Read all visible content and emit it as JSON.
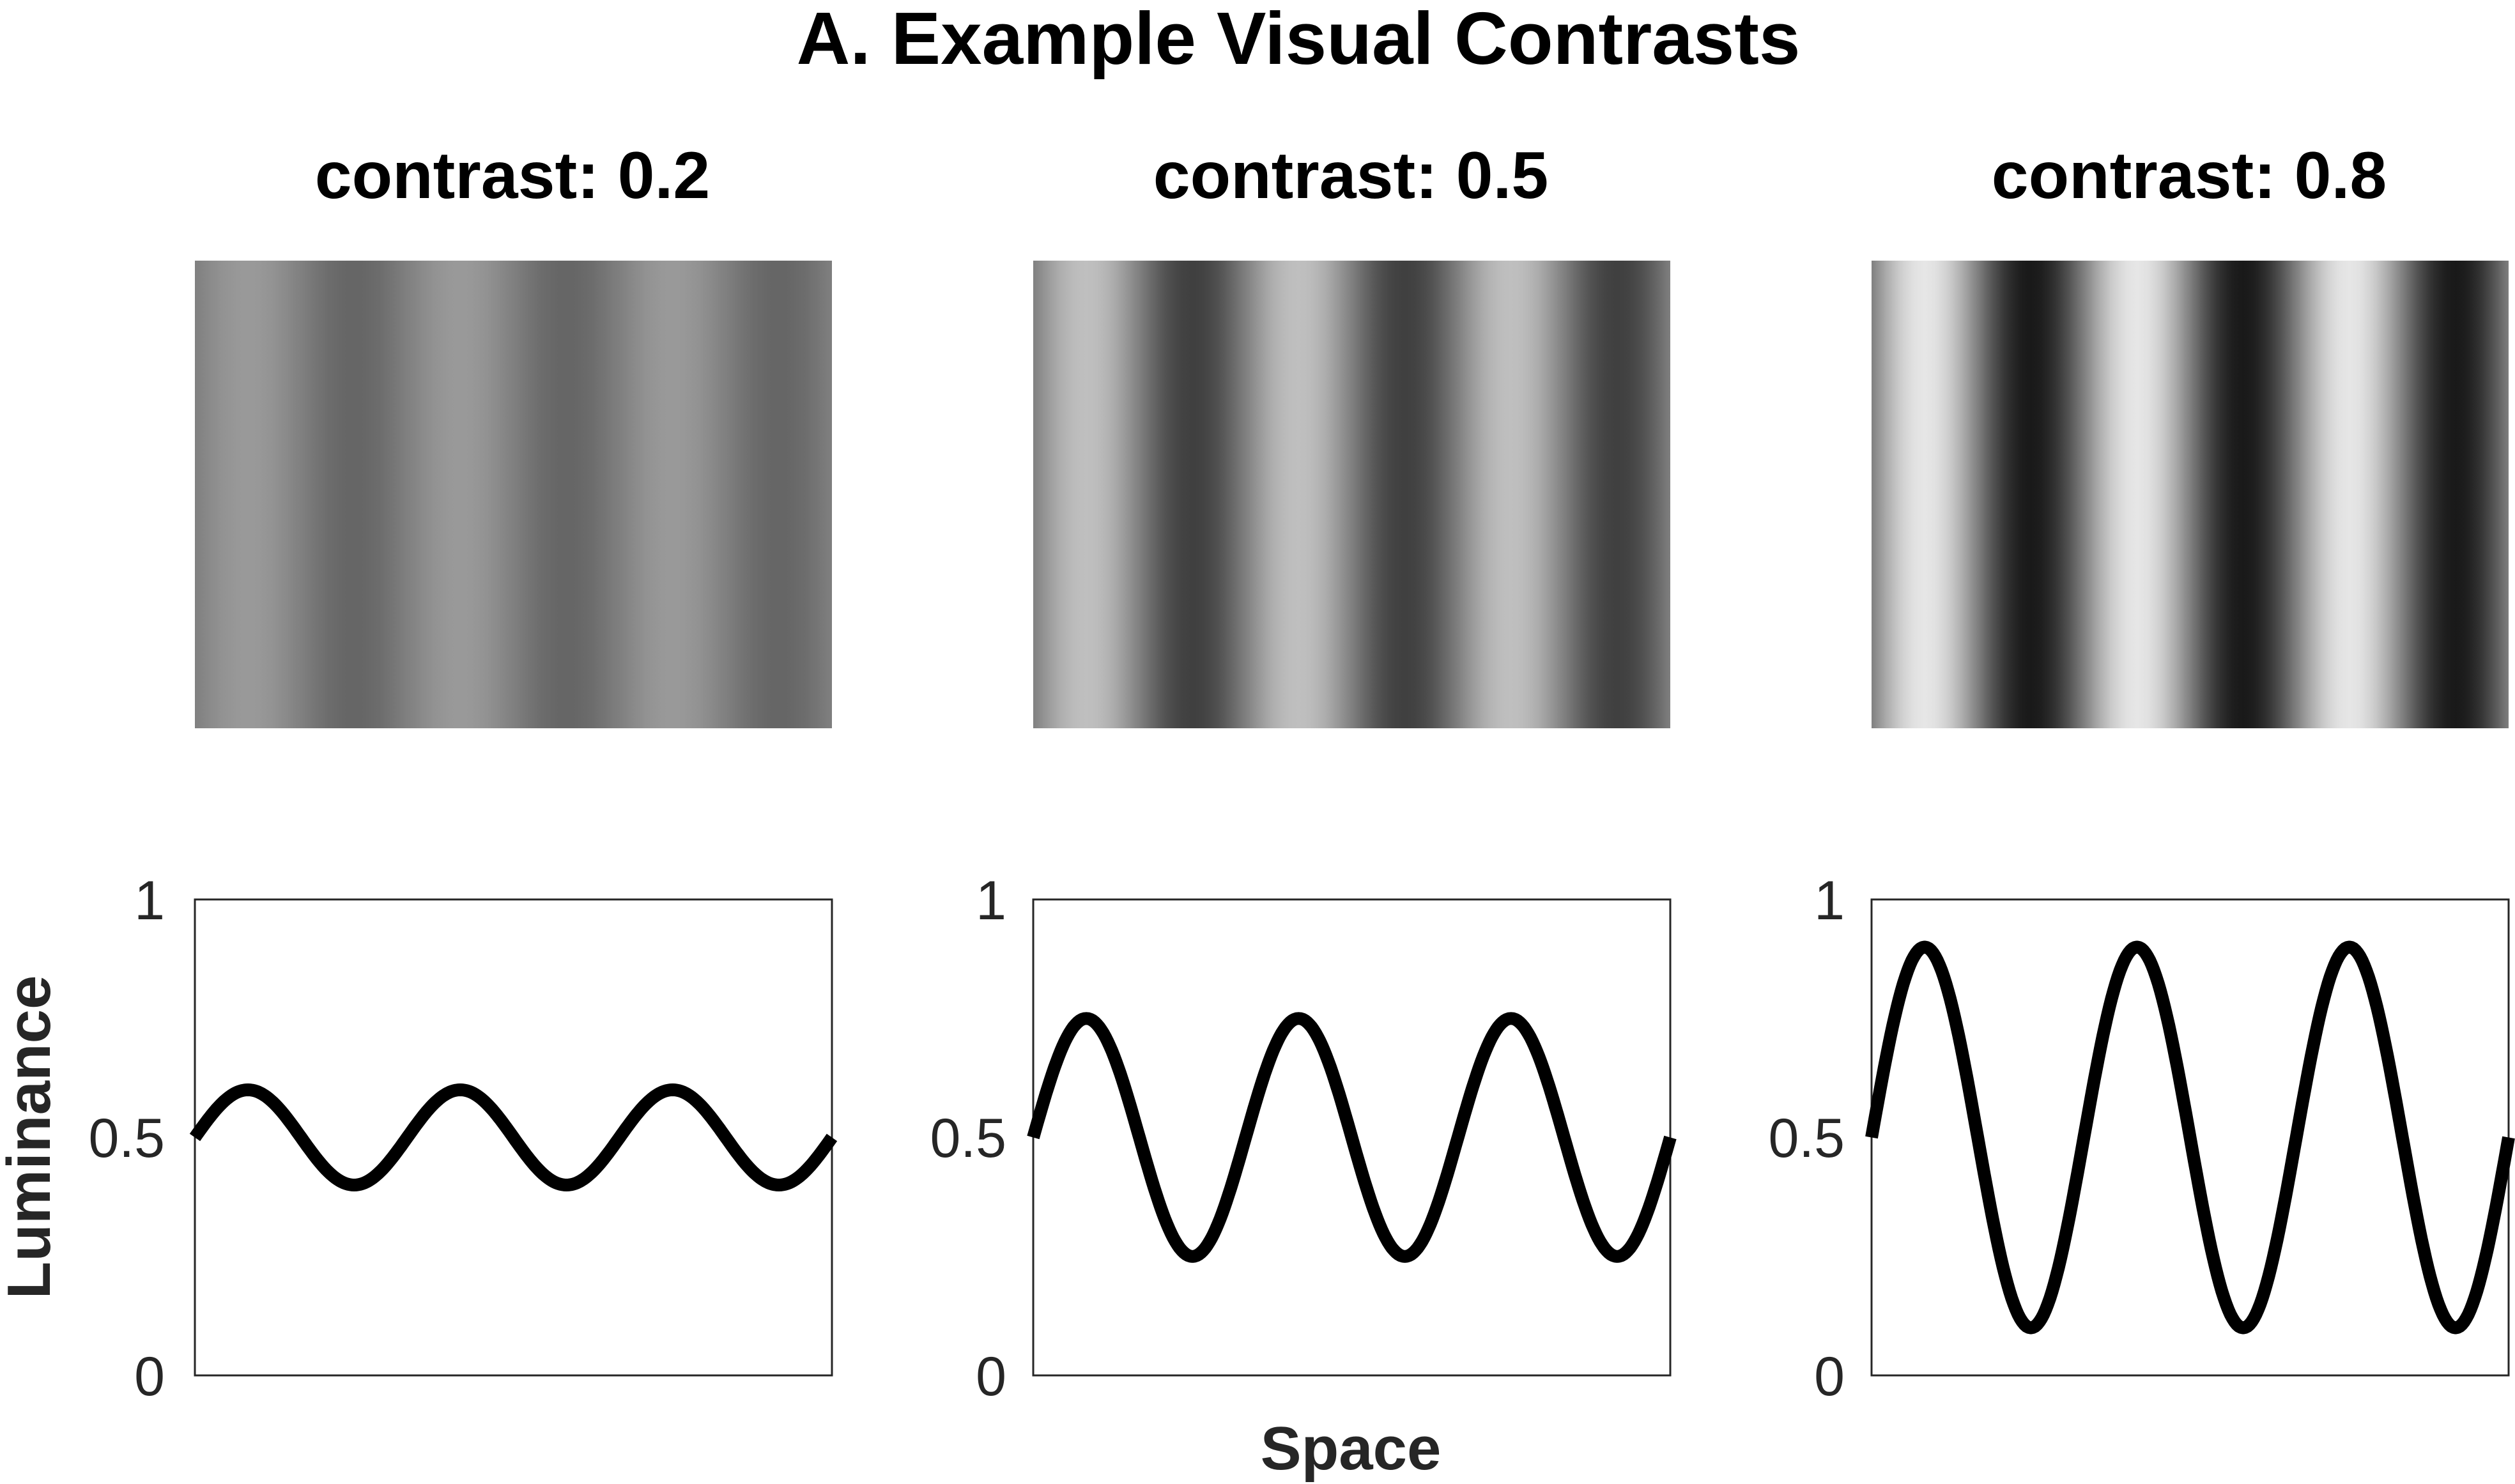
{
  "figure_title": "A. Example Visual Contrasts",
  "colors": {
    "wave": "#000000",
    "axis": "#262626",
    "text": "#000000"
  },
  "chart_data": [
    {
      "type": "line",
      "title": "contrast: 0.2",
      "contrast": 0.2,
      "mean_luminance": 0.5,
      "cycles": 3,
      "series": [
        {
          "function": "0.5 + 0.1 * sin(2*pi*3*x)",
          "x_range": [
            0,
            1
          ]
        }
      ],
      "ylabel": "Luminance",
      "xlabel": "",
      "ylim": [
        0,
        1
      ],
      "yticks": [
        "0",
        "0.5",
        "1"
      ],
      "grid": false
    },
    {
      "type": "line",
      "title": "contrast: 0.5",
      "contrast": 0.5,
      "mean_luminance": 0.5,
      "cycles": 3,
      "series": [
        {
          "function": "0.5 + 0.25 * sin(2*pi*3*x)",
          "x_range": [
            0,
            1
          ]
        }
      ],
      "ylabel": "",
      "xlabel": "Space",
      "ylim": [
        0,
        1
      ],
      "yticks": [
        "0",
        "0.5",
        "1"
      ],
      "grid": false
    },
    {
      "type": "line",
      "title": "contrast: 0.8",
      "contrast": 0.8,
      "mean_luminance": 0.5,
      "cycles": 3,
      "series": [
        {
          "function": "0.5 + 0.4 * sin(2*pi*3*x)",
          "x_range": [
            0,
            1
          ]
        }
      ],
      "ylabel": "",
      "xlabel": "",
      "ylim": [
        0,
        1
      ],
      "yticks": [
        "0",
        "0.5",
        "1"
      ],
      "grid": false
    }
  ]
}
